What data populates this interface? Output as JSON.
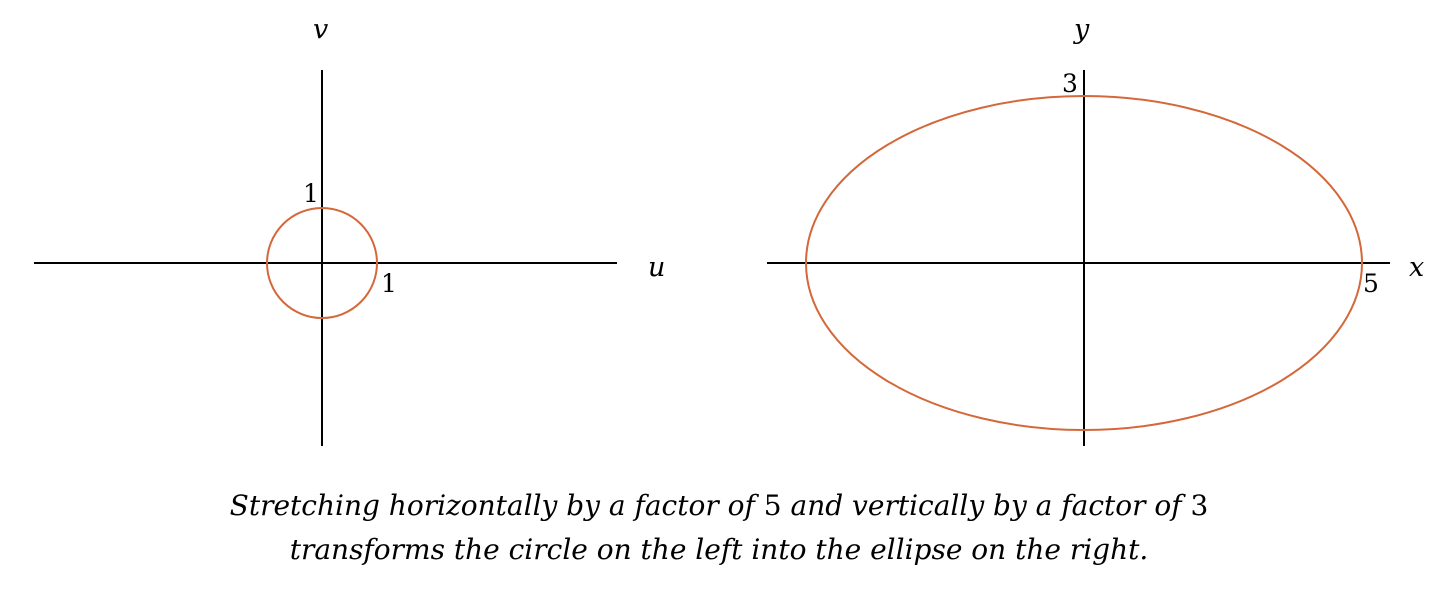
{
  "colors": {
    "curve": "#d4683a",
    "axes": "#000000"
  },
  "left_plot": {
    "horizontal_axis_label": "u",
    "vertical_axis_label": "v",
    "shape": "circle",
    "radius_x": 1,
    "radius_y": 1,
    "horizontal_tick_label": "1",
    "vertical_tick_label": "1"
  },
  "right_plot": {
    "horizontal_axis_label": "x",
    "vertical_axis_label": "y",
    "shape": "ellipse",
    "radius_x": 5,
    "radius_y": 3,
    "horizontal_tick_label": "5",
    "vertical_tick_label": "3"
  },
  "caption": {
    "line1_part1": "Stretching horizontally by a factor of",
    "line1_num1": "5",
    "line1_part2": "and vertically by a factor of",
    "line1_num2": "3",
    "line2": "transforms the circle on the left into the ellipse on the right."
  }
}
